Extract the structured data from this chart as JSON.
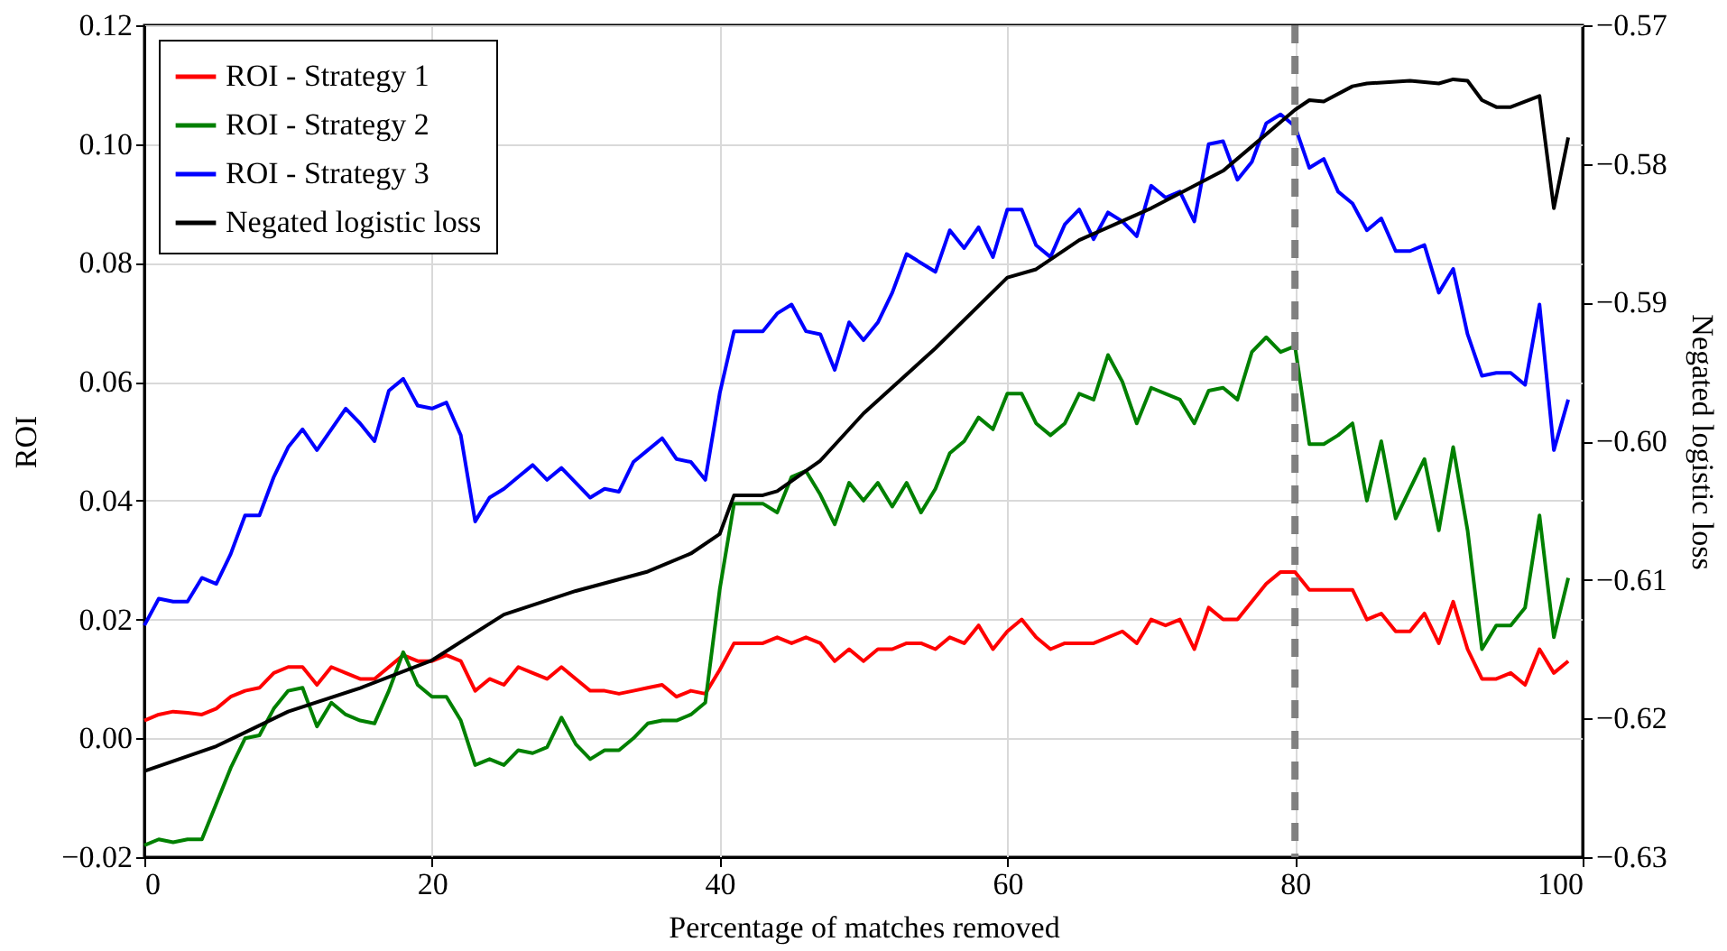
{
  "chart_data": {
    "type": "line",
    "xlabel": "Percentage of matches removed",
    "ylabel": "ROI",
    "y2label": "Negated logistic loss",
    "x": [
      0,
      1,
      2,
      3,
      4,
      5,
      6,
      7,
      8,
      9,
      10,
      11,
      12,
      13,
      14,
      15,
      16,
      17,
      18,
      19,
      20,
      21,
      22,
      23,
      24,
      25,
      26,
      27,
      28,
      29,
      30,
      31,
      32,
      33,
      34,
      35,
      36,
      37,
      38,
      39,
      40,
      41,
      42,
      43,
      44,
      45,
      46,
      47,
      48,
      49,
      50,
      51,
      52,
      53,
      54,
      55,
      56,
      57,
      58,
      59,
      60,
      61,
      62,
      63,
      64,
      65,
      66,
      67,
      68,
      69,
      70,
      71,
      72,
      73,
      74,
      75,
      76,
      77,
      78,
      79,
      80,
      81,
      82,
      83,
      84,
      85,
      86,
      87,
      88,
      89,
      90,
      91,
      92,
      93,
      94,
      95,
      96,
      97,
      98,
      99
    ],
    "series": [
      {
        "name": "ROI - Strategy 1",
        "color": "#ff0000",
        "values": [
          0.003,
          0.004,
          0.0045,
          0.0043,
          0.004,
          0.005,
          0.007,
          0.008,
          0.0085,
          0.011,
          0.012,
          0.012,
          0.009,
          0.012,
          0.011,
          0.01,
          0.01,
          0.012,
          0.014,
          0.013,
          0.013,
          0.014,
          0.013,
          0.008,
          0.01,
          0.009,
          0.012,
          0.011,
          0.01,
          0.012,
          0.01,
          0.008,
          0.008,
          0.0075,
          0.008,
          0.0085,
          0.009,
          0.007,
          0.008,
          0.0075,
          0.0115,
          0.016,
          0.016,
          0.016,
          0.017,
          0.016,
          0.017,
          0.016,
          0.013,
          0.015,
          0.013,
          0.015,
          0.015,
          0.016,
          0.016,
          0.015,
          0.017,
          0.016,
          0.019,
          0.015,
          0.018,
          0.02,
          0.017,
          0.015,
          0.016,
          0.016,
          0.016,
          0.017,
          0.018,
          0.016,
          0.02,
          0.019,
          0.02,
          0.015,
          0.022,
          0.02,
          0.02,
          0.023,
          0.026,
          0.028,
          0.028,
          0.025,
          0.025,
          0.025,
          0.025,
          0.02,
          0.021,
          0.018,
          0.018,
          0.021,
          0.016,
          0.023,
          0.015,
          0.01,
          0.01,
          0.011,
          0.009,
          0.015,
          0.011,
          0.013
        ]
      },
      {
        "name": "ROI - Strategy 2",
        "color": "#008000",
        "values": [
          -0.018,
          -0.017,
          -0.0175,
          -0.017,
          -0.017,
          -0.011,
          -0.005,
          0.0,
          0.0005,
          0.005,
          0.008,
          0.0085,
          0.002,
          0.006,
          0.004,
          0.003,
          0.0025,
          0.008,
          0.0145,
          0.009,
          0.007,
          0.007,
          0.003,
          -0.0045,
          -0.0035,
          -0.0045,
          -0.002,
          -0.0025,
          -0.0015,
          0.0035,
          -0.001,
          -0.0035,
          -0.002,
          -0.002,
          0.0,
          0.0025,
          0.003,
          0.003,
          0.004,
          0.006,
          0.025,
          0.0395,
          0.0395,
          0.0395,
          0.038,
          0.044,
          0.045,
          0.041,
          0.036,
          0.043,
          0.04,
          0.043,
          0.039,
          0.043,
          0.038,
          0.042,
          0.048,
          0.05,
          0.054,
          0.052,
          0.058,
          0.058,
          0.053,
          0.051,
          0.053,
          0.058,
          0.057,
          0.0645,
          0.06,
          0.053,
          0.059,
          0.058,
          0.057,
          0.053,
          0.0585,
          0.059,
          0.057,
          0.065,
          0.0675,
          0.065,
          0.066,
          0.0495,
          0.0495,
          0.051,
          0.053,
          0.04,
          0.05,
          0.037,
          0.042,
          0.047,
          0.035,
          0.049,
          0.035,
          0.015,
          0.019,
          0.019,
          0.022,
          0.0375,
          0.017,
          0.027
        ]
      },
      {
        "name": "ROI - Strategy 3",
        "color": "#0000ff",
        "values": [
          0.019,
          0.0235,
          0.023,
          0.023,
          0.027,
          0.026,
          0.031,
          0.0375,
          0.0375,
          0.044,
          0.049,
          0.052,
          0.0485,
          0.052,
          0.0555,
          0.053,
          0.05,
          0.0585,
          0.0605,
          0.056,
          0.0555,
          0.0565,
          0.051,
          0.0365,
          0.0405,
          0.042,
          0.044,
          0.046,
          0.0435,
          0.0455,
          0.043,
          0.0405,
          0.042,
          0.0415,
          0.0465,
          0.0485,
          0.0505,
          0.047,
          0.0465,
          0.0435,
          0.058,
          0.0685,
          0.0685,
          0.0685,
          0.0715,
          0.073,
          0.0685,
          0.068,
          0.062,
          0.07,
          0.067,
          0.07,
          0.075,
          0.0815,
          0.08,
          0.0785,
          0.0855,
          0.0825,
          0.086,
          0.081,
          0.089,
          0.089,
          0.083,
          0.081,
          0.0865,
          0.089,
          0.084,
          0.0885,
          0.087,
          0.0845,
          0.093,
          0.091,
          0.092,
          0.087,
          0.1,
          0.1005,
          0.094,
          0.097,
          0.1035,
          0.105,
          0.103,
          0.096,
          0.0975,
          0.092,
          0.09,
          0.0855,
          0.0875,
          0.082,
          0.082,
          0.083,
          0.075,
          0.079,
          0.068,
          0.061,
          0.0615,
          0.0615,
          0.0595,
          0.073,
          0.0485,
          0.057
        ]
      },
      {
        "name": "Negated logistic loss",
        "color": "#000000",
        "axis": "y2",
        "x": [
          0,
          5,
          10,
          15,
          20,
          25,
          30,
          35,
          38,
          40,
          41,
          43,
          44,
          47,
          50,
          55,
          60,
          62,
          65,
          70,
          75,
          80,
          81,
          82,
          84,
          85,
          88,
          90,
          91,
          92,
          93,
          94,
          95,
          97,
          98,
          99
        ],
        "values": [
          -0.6238,
          -0.622,
          -0.6195,
          -0.6178,
          -0.6158,
          -0.6125,
          -0.6108,
          -0.6094,
          -0.6081,
          -0.6067,
          -0.6039,
          -0.6039,
          -0.6036,
          -0.6014,
          -0.598,
          -0.5933,
          -0.5882,
          -0.5876,
          -0.5855,
          -0.5832,
          -0.5805,
          -0.5761,
          -0.5754,
          -0.5755,
          -0.5744,
          -0.5742,
          -0.574,
          -0.5742,
          -0.5739,
          -0.574,
          -0.5754,
          -0.5759,
          -0.5759,
          -0.5751,
          -0.5832,
          -0.5781
        ]
      }
    ],
    "xlim": [
      0,
      100
    ],
    "xticks": [
      0,
      20,
      40,
      60,
      80,
      100
    ],
    "ylim": [
      -0.02,
      0.12
    ],
    "yticks": [
      {
        "value": -0.02,
        "label": "−0.02"
      },
      {
        "value": 0,
        "label": "0.00"
      },
      {
        "value": 0.02,
        "label": "0.02"
      },
      {
        "value": 0.04,
        "label": "0.04"
      },
      {
        "value": 0.06,
        "label": "0.06"
      },
      {
        "value": 0.08,
        "label": "0.08"
      },
      {
        "value": 0.1,
        "label": "0.10"
      },
      {
        "value": 0.12,
        "label": "0.12"
      }
    ],
    "y2lim": [
      -0.63,
      -0.57
    ],
    "y2ticks": [
      {
        "value": -0.63,
        "label": "−0.63"
      },
      {
        "value": -0.62,
        "label": "−0.62"
      },
      {
        "value": -0.61,
        "label": "−0.61"
      },
      {
        "value": -0.6,
        "label": "−0.60"
      },
      {
        "value": -0.59,
        "label": "−0.59"
      },
      {
        "value": -0.58,
        "label": "−0.58"
      },
      {
        "value": -0.57,
        "label": "−0.57"
      }
    ],
    "ref_lines": [
      {
        "axis": "x",
        "value": 80,
        "color": "#808080",
        "line_style": "dashed"
      }
    ],
    "grid": true,
    "legend": "top left"
  }
}
